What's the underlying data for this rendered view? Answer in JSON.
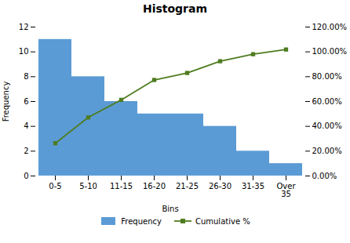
{
  "chart_data": {
    "type": "bar",
    "title": "Histogram",
    "xlabel": "Bins",
    "ylabel": "Frequency",
    "categories": [
      "0-5",
      "5-10",
      "11-15",
      "16-20",
      "21-25",
      "26-30",
      "31-35",
      "Over\n35"
    ],
    "series": [
      {
        "name": "Frequency",
        "type": "bar",
        "color": "#5B9BD5",
        "values": [
          11,
          8,
          6,
          5,
          5,
          4,
          2,
          1
        ]
      },
      {
        "name": "Cumulative %",
        "type": "line",
        "axis": "y2",
        "color": "#4E7C1F",
        "marker": "square",
        "values": [
          0.2642,
          0.4717,
          0.6132,
          0.7736,
          0.8302,
          0.9245,
          0.9811,
          1.0189
        ]
      }
    ],
    "ylim": [
      0,
      12
    ],
    "yticks": [
      0,
      2,
      4,
      6,
      8,
      10,
      12
    ],
    "y2lim": [
      0,
      1.2
    ],
    "y2ticks": [
      {
        "value": 0.0,
        "label": "0.00%"
      },
      {
        "value": 0.2,
        "label": "20.00%"
      },
      {
        "value": 0.4,
        "label": "40.00%"
      },
      {
        "value": 0.6,
        "label": "60.00%"
      },
      {
        "value": 0.8,
        "label": "80.00%"
      },
      {
        "value": 1.0,
        "label": "100.00%"
      },
      {
        "value": 1.2,
        "label": "120.00%"
      }
    ],
    "grid": false,
    "legend": "bottom"
  }
}
